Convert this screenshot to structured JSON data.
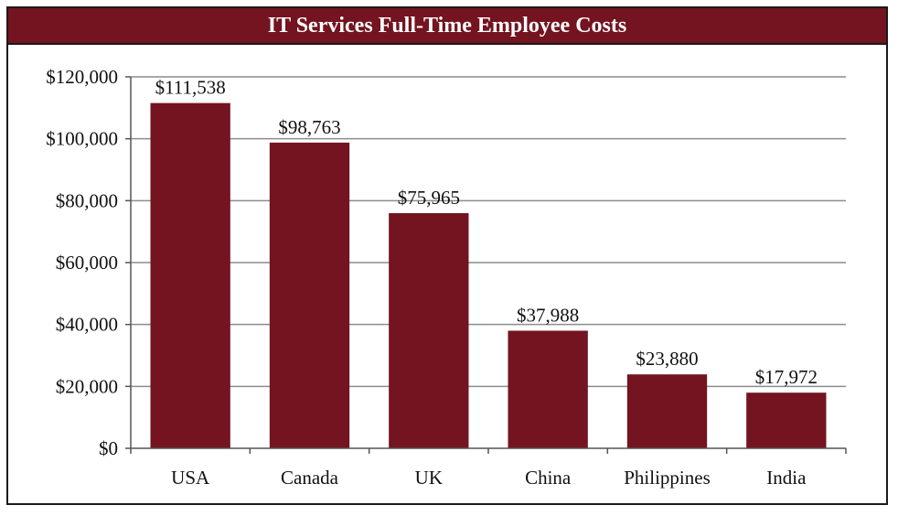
{
  "chart_data": {
    "type": "bar",
    "title": "IT Services Full-Time Employee Costs",
    "categories": [
      "USA",
      "Canada",
      "UK",
      "China",
      "Philippines",
      "India"
    ],
    "values": [
      111538,
      98763,
      75965,
      37988,
      23880,
      17972
    ],
    "data_labels": [
      "$111,538",
      "$98,763",
      "$75,965",
      "$37,988",
      "$23,880",
      "$17,972"
    ],
    "ylim": [
      0,
      120000
    ],
    "yticks": [
      0,
      20000,
      40000,
      60000,
      80000,
      100000,
      120000
    ],
    "ytick_labels": [
      "$0",
      "$20,000",
      "$40,000",
      "$60,000",
      "$80,000",
      "$100,000",
      "$120,000"
    ],
    "grid": true,
    "legend": "none",
    "bar_color": "#731420",
    "title_bg": "#731420"
  }
}
